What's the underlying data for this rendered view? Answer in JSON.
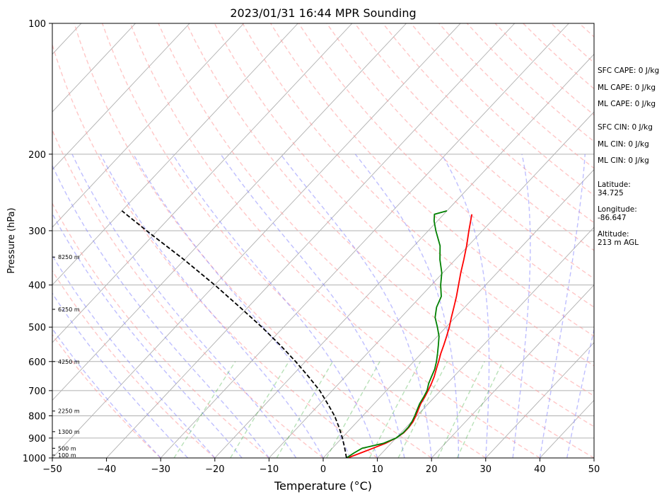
{
  "chart_data": {
    "type": "line",
    "title": "2023/01/31 16:44 MPR Sounding",
    "xlabel": "Temperature (°C)",
    "ylabel": "Pressure (hPa)",
    "xlim": [
      -50,
      50
    ],
    "ylim": [
      1000,
      100
    ],
    "y_scale": "log",
    "skew": true,
    "grid": true,
    "x_ticks": [
      -50,
      -40,
      -30,
      -20,
      -10,
      0,
      10,
      20,
      30,
      40,
      50
    ],
    "y_ticks": [
      100,
      200,
      300,
      400,
      500,
      600,
      700,
      800,
      900,
      1000
    ],
    "height_labels": [
      {
        "text": "100 m",
        "p": 985
      },
      {
        "text": "500 m",
        "p": 950
      },
      {
        "text": "1300 m",
        "p": 870
      },
      {
        "text": "2250 m",
        "p": 780
      },
      {
        "text": "4250 m",
        "p": 600
      },
      {
        "text": "6250 m",
        "p": 455
      },
      {
        "text": "8250 m",
        "p": 345
      }
    ],
    "series": [
      {
        "color": "#ff0000",
        "style": "solid",
        "points": [
          [
            1000,
            4.5
          ],
          [
            975,
            6.0
          ],
          [
            950,
            7.5
          ],
          [
            925,
            9.0
          ],
          [
            900,
            10.0
          ],
          [
            875,
            10.5
          ],
          [
            850,
            10.5
          ],
          [
            825,
            10.3
          ],
          [
            800,
            9.8
          ],
          [
            775,
            9.2
          ],
          [
            750,
            8.6
          ],
          [
            725,
            8.2
          ],
          [
            700,
            7.7
          ],
          [
            675,
            7.1
          ],
          [
            650,
            6.4
          ],
          [
            625,
            5.5
          ],
          [
            600,
            4.6
          ],
          [
            575,
            3.6
          ],
          [
            550,
            2.7
          ],
          [
            525,
            1.7
          ],
          [
            500,
            0.6
          ],
          [
            475,
            -0.7
          ],
          [
            450,
            -2.0
          ],
          [
            425,
            -3.4
          ],
          [
            400,
            -5.0
          ],
          [
            375,
            -6.7
          ],
          [
            350,
            -8.4
          ],
          [
            325,
            -10.3
          ],
          [
            300,
            -12.5
          ],
          [
            275,
            -14.8
          ]
        ]
      },
      {
        "color": "#008000",
        "style": "solid",
        "points": [
          [
            1000,
            4.3
          ],
          [
            975,
            4.8
          ],
          [
            950,
            5.5
          ],
          [
            925,
            8.6
          ],
          [
            900,
            10.0
          ],
          [
            875,
            10.4
          ],
          [
            850,
            10.4
          ],
          [
            825,
            10.1
          ],
          [
            800,
            9.6
          ],
          [
            775,
            9.0
          ],
          [
            750,
            8.4
          ],
          [
            725,
            8.0
          ],
          [
            700,
            7.5
          ],
          [
            675,
            6.6
          ],
          [
            650,
            5.9
          ],
          [
            625,
            5.2
          ],
          [
            600,
            4.2
          ],
          [
            575,
            3.0
          ],
          [
            550,
            1.7
          ],
          [
            525,
            0.3
          ],
          [
            500,
            -1.6
          ],
          [
            475,
            -3.7
          ],
          [
            450,
            -5.2
          ],
          [
            425,
            -6.2
          ],
          [
            400,
            -8.3
          ],
          [
            375,
            -10.2
          ],
          [
            350,
            -12.8
          ],
          [
            325,
            -15.2
          ],
          [
            300,
            -18.6
          ],
          [
            285,
            -20.6
          ],
          [
            275,
            -21.7
          ],
          [
            270,
            -20.0
          ]
        ]
      },
      {
        "color": "#000000",
        "style": "dashed",
        "points": [
          [
            1000,
            4.3
          ],
          [
            950,
            2.3
          ],
          [
            900,
            0.1
          ],
          [
            850,
            -2.4
          ],
          [
            800,
            -5.2
          ],
          [
            750,
            -8.6
          ],
          [
            700,
            -12.3
          ],
          [
            650,
            -16.8
          ],
          [
            600,
            -21.8
          ],
          [
            550,
            -27.5
          ],
          [
            500,
            -34.0
          ],
          [
            450,
            -41.5
          ],
          [
            400,
            -50.0
          ],
          [
            350,
            -60.0
          ],
          [
            300,
            -72.0
          ],
          [
            270,
            -80.0
          ]
        ]
      }
    ]
  },
  "info_panel": {
    "sfc_cape": "SFC CAPE: 0 J/kg",
    "ml_cape_1": "ML CAPE: 0 J/kg",
    "ml_cape_2": "ML CAPE: 0 J/kg",
    "sfc_cin": "SFC CIN: 0 J/kg",
    "ml_cin_1": "ML CIN: 0 J/kg",
    "ml_cin_2": "ML CIN: 0 J/kg",
    "latitude": "Latitude:\n34.725",
    "longitude": "Longitude:\n-86.647",
    "altitude": "Altitude:\n213 m AGL"
  }
}
